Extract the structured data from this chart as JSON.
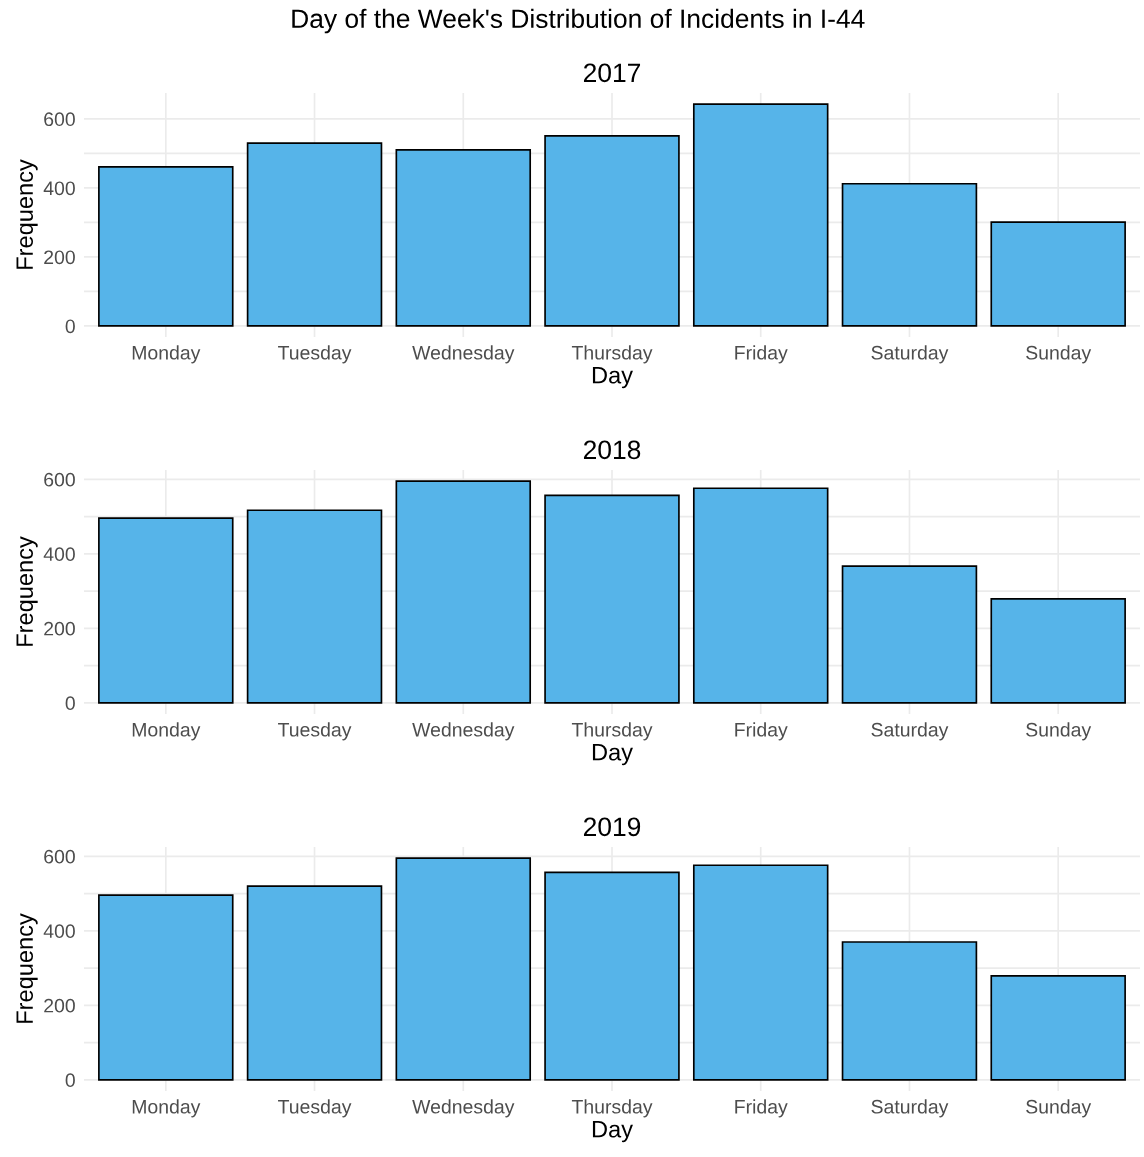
{
  "chart_data": [
    {
      "type": "bar",
      "title": "Day of the Week's Distribution of Incidents in I-44",
      "subtitle": "2017",
      "xlabel": "Day",
      "ylabel": "Frequency",
      "categories": [
        "Monday",
        "Tuesday",
        "Wednesday",
        "Thursday",
        "Friday",
        "Saturday",
        "Sunday"
      ],
      "values": [
        461,
        530,
        510,
        551,
        643,
        412,
        301
      ],
      "color": "#56b4e9",
      "ylim": [
        -32,
        675
      ],
      "yticks": [
        0,
        {
          "value": 100,
          "label": null
        },
        200,
        {
          "value": 300,
          "label": null
        },
        400,
        {
          "value": 500,
          "label": null
        },
        600
      ],
      "grid": true
    },
    {
      "type": "bar",
      "title": "2018",
      "xlabel": "Day",
      "ylabel": "Frequency",
      "categories": [
        "Monday",
        "Tuesday",
        "Wednesday",
        "Thursday",
        "Friday",
        "Saturday",
        "Sunday"
      ],
      "values": [
        496,
        517,
        595,
        557,
        576,
        367,
        279
      ],
      "color": "#56b4e9",
      "ylim": [
        -30,
        625
      ],
      "yticks": [
        0,
        {
          "value": 100,
          "label": null
        },
        200,
        {
          "value": 300,
          "label": null
        },
        400,
        {
          "value": 500,
          "label": null
        },
        600
      ],
      "grid": true
    },
    {
      "type": "bar",
      "title": "2019",
      "xlabel": "Day",
      "ylabel": "Frequency",
      "categories": [
        "Monday",
        "Tuesday",
        "Wednesday",
        "Thursday",
        "Friday",
        "Saturday",
        "Sunday"
      ],
      "values": [
        496,
        520,
        595,
        557,
        576,
        370,
        279
      ],
      "color": "#56b4e9",
      "ylim": [
        -30,
        625
      ],
      "yticks": [
        0,
        {
          "value": 100,
          "label": null
        },
        200,
        {
          "value": 300,
          "label": null
        },
        400,
        {
          "value": 500,
          "label": null
        },
        600
      ],
      "grid": true
    }
  ]
}
